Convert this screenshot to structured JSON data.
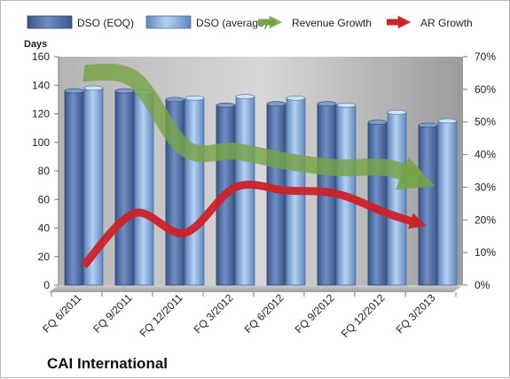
{
  "chart_data": {
    "type": "bar",
    "title": "CAI International",
    "ylabel": "Days",
    "ylim": [
      0,
      160
    ],
    "yticks": [
      0,
      20,
      40,
      60,
      80,
      100,
      120,
      140,
      160
    ],
    "y2lim": [
      0,
      70
    ],
    "y2ticks": [
      "0%",
      "10%",
      "20%",
      "30%",
      "40%",
      "50%",
      "60%",
      "70%"
    ],
    "categories": [
      "FQ 6/2011",
      "FQ 9/2011",
      "FQ 12/2011",
      "FQ 3/2012",
      "FQ 6/2012",
      "FQ 9/2012",
      "FQ 12/2012",
      "FQ 3/2013"
    ],
    "series": [
      {
        "name": "DSO (EOQ)",
        "type": "bar",
        "axis": "left",
        "color": "#4f6fa8",
        "values": [
          136,
          136,
          130,
          126,
          127,
          127,
          114,
          112
        ]
      },
      {
        "name": "DSO (average)",
        "type": "bar",
        "axis": "left",
        "color": "#8fb3e0",
        "values": [
          138,
          135,
          131,
          132,
          131,
          126,
          121,
          115
        ]
      },
      {
        "name": "Revenue Growth",
        "type": "line",
        "axis": "right",
        "color": "#77a347",
        "values": [
          65,
          63,
          42,
          41,
          38,
          36,
          36,
          30
        ]
      },
      {
        "name": "AR Growth",
        "type": "line",
        "axis": "right",
        "color": "#cc2229",
        "values": [
          6,
          22,
          16,
          30,
          29,
          28,
          22,
          17
        ]
      }
    ],
    "grid": false,
    "legend": "top"
  }
}
